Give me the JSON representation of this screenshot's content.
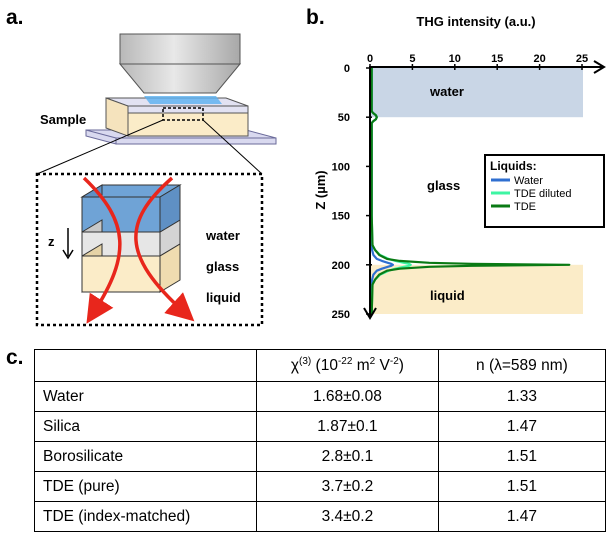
{
  "panel_labels": {
    "a": "a.",
    "b": "b.",
    "c": "c."
  },
  "panel_a": {
    "sample_label": "Sample",
    "z_label": "z",
    "layers": [
      "water",
      "glass",
      "liquid"
    ]
  },
  "chart_data": {
    "type": "line",
    "title": "THG intensity (a.u.)",
    "xlim": [
      0,
      25
    ],
    "x_ticks": [
      "0",
      "5",
      "10",
      "15",
      "20",
      "25"
    ],
    "ylabel": "Z (µm)",
    "ylim": [
      0,
      250
    ],
    "y_ticks": [
      "0",
      "50",
      "100",
      "150",
      "200",
      "250"
    ],
    "y_inverted": true,
    "regions": [
      {
        "label": "water",
        "z_range": [
          0,
          50
        ],
        "color": "#c9d6e6"
      },
      {
        "label": "glass",
        "z_range": [
          50,
          200
        ],
        "color": "#ffffff"
      },
      {
        "label": "liquid",
        "z_range": [
          200,
          250
        ],
        "color": "#fbecc8"
      }
    ],
    "legend": {
      "title": "Liquids:",
      "position": "right"
    },
    "series": [
      {
        "name": "Water",
        "color": "#2f6fd0",
        "z": [
          0,
          44,
          46,
          48,
          50,
          52,
          54,
          56,
          150,
          185,
          190,
          194,
          196,
          198,
          199,
          200,
          201,
          202,
          204,
          206,
          210,
          215,
          250
        ],
        "thg": [
          0.2,
          0.2,
          0.4,
          0.7,
          0.8,
          0.7,
          0.4,
          0.2,
          0.2,
          0.25,
          0.4,
          0.8,
          1.4,
          2.1,
          2.5,
          2.7,
          2.5,
          2.1,
          1.4,
          0.8,
          0.4,
          0.25,
          0.2
        ]
      },
      {
        "name": "TDE diluted",
        "color": "#3df5a3",
        "z": [
          0,
          44,
          46,
          48,
          50,
          52,
          54,
          56,
          150,
          180,
          185,
          190,
          194,
          196,
          198,
          199,
          200,
          201,
          202,
          204,
          206,
          210,
          215,
          220,
          250
        ],
        "thg": [
          0.2,
          0.2,
          0.4,
          0.7,
          0.8,
          0.7,
          0.4,
          0.2,
          0.2,
          0.3,
          0.6,
          1.2,
          2.2,
          3.0,
          4.0,
          4.6,
          4.8,
          4.6,
          4.0,
          3.0,
          2.2,
          1.2,
          0.6,
          0.3,
          0.2
        ]
      },
      {
        "name": "TDE",
        "color": "#0a7a14",
        "z": [
          0,
          44,
          46,
          48,
          50,
          52,
          54,
          56,
          150,
          180,
          185,
          190,
          194,
          196,
          198,
          199,
          200,
          201,
          202,
          204,
          206,
          210,
          215,
          220,
          250
        ],
        "thg": [
          0.2,
          0.2,
          0.4,
          0.7,
          0.8,
          0.7,
          0.4,
          0.2,
          0.2,
          0.3,
          0.6,
          1.1,
          2.0,
          3.5,
          7.0,
          12.0,
          23.5,
          12.0,
          7.0,
          3.5,
          2.0,
          1.1,
          0.6,
          0.3,
          0.2
        ]
      }
    ]
  },
  "table": {
    "header": {
      "c0": "",
      "c1_sym": "χ",
      "c1_sup": "(3)",
      "c1_unit_a": " (10",
      "c1_unit_a_sup": "-22",
      "c1_unit_b": " m",
      "c1_unit_b_sup": "2",
      "c1_unit_c": " V",
      "c1_unit_c_sup": "-2",
      "c1_unit_d": ")",
      "c2": "n (λ=589 nm)"
    },
    "rows": [
      {
        "material": "Water",
        "chi3": "1.68±0.08",
        "n": "1.33"
      },
      {
        "material": "Silica",
        "chi3": "1.87±0.1",
        "n": "1.47"
      },
      {
        "material": "Borosilicate",
        "chi3": "2.8±0.1",
        "n": "1.51"
      },
      {
        "material": "TDE (pure)",
        "chi3": "3.7±0.2",
        "n": "1.51"
      },
      {
        "material": "TDE (index-matched)",
        "chi3": "3.4±0.2",
        "n": "1.47"
      }
    ]
  }
}
